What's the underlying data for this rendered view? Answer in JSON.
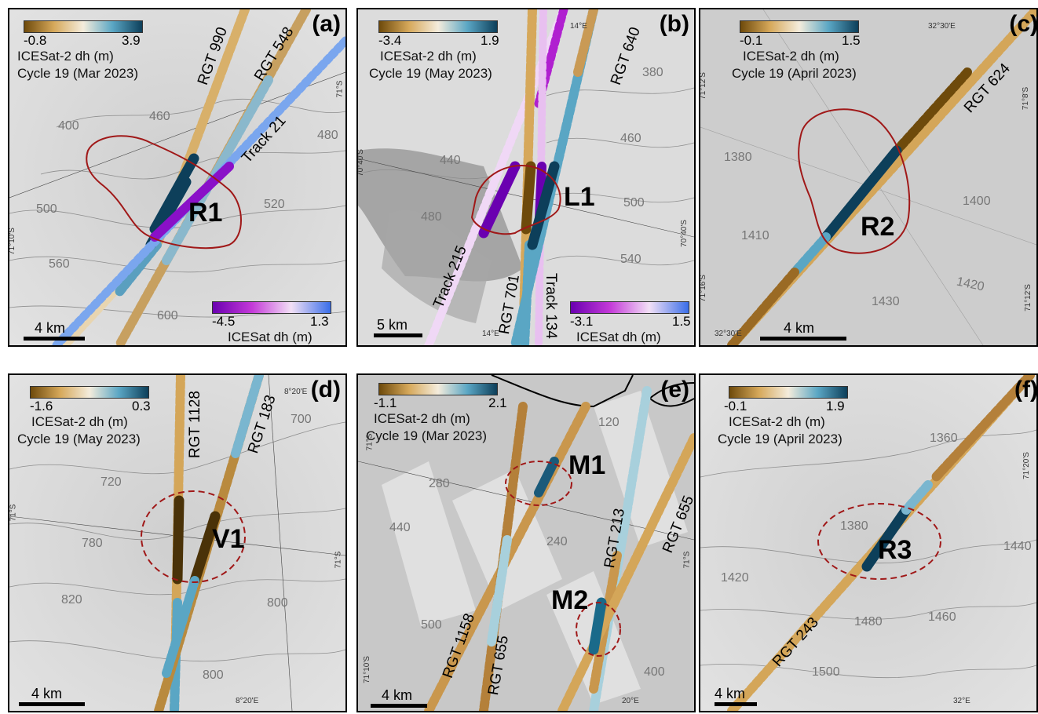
{
  "colors": {
    "dh_low": "#6e4a0b",
    "dh_mid": "#f4ecdc",
    "dh_high": "#0d3f5a",
    "icesat_low": "#6a00b0",
    "icesat_mid": "#f2e0f6",
    "icesat_high": "#3a6ee8",
    "outline": "#a01818",
    "background": "#d5d5d5"
  },
  "panels": [
    {
      "label": "(a)",
      "cbar1": {
        "min": "-0.8",
        "max": "3.9",
        "title": "ICESat-2 dh (m)",
        "cycle": "Cycle 19 (Mar 2023)"
      },
      "cbar2": {
        "min": "-4.5",
        "max": "1.3",
        "title": "ICESat dh (m)"
      },
      "tracks": [
        "RGT 990",
        "RGT 548",
        "Track 21"
      ],
      "feature": "R1",
      "contours": [
        "400",
        "460",
        "480",
        "500",
        "520",
        "560",
        "600"
      ],
      "coords": [
        "71°S",
        "71°10'S"
      ],
      "scale": "4 km"
    },
    {
      "label": "(b)",
      "cbar1": {
        "min": "-3.4",
        "max": "1.9",
        "title": "ICESat-2 dh (m)",
        "cycle": "Cycle 19 (May 2023)"
      },
      "cbar2": {
        "min": "-3.1",
        "max": "1.5",
        "title": "ICESat dh (m)"
      },
      "tracks": [
        "RGT 640",
        "Track 215",
        "RGT 701",
        "Track 134"
      ],
      "feature": "L1",
      "contours": [
        "380",
        "440",
        "460",
        "480",
        "500",
        "540"
      ],
      "coords": [
        "14°E",
        "70°40'S",
        "70°40'S",
        "14°E"
      ],
      "scale": "5 km"
    },
    {
      "label": "(c)",
      "cbar1": {
        "min": "-0.1",
        "max": "1.5",
        "title": "ICESat-2 dh (m)",
        "cycle": "Cycle 19 (April 2023)"
      },
      "tracks": [
        "RGT 624"
      ],
      "feature": "R2",
      "contours": [
        "1380",
        "1400",
        "1410",
        "1420",
        "1430"
      ],
      "coords": [
        "32°30'E",
        "71°12'S",
        "71°8'S",
        "71°16'S",
        "71°12'S",
        "32°30'E"
      ],
      "scale": "4 km"
    },
    {
      "label": "(d)",
      "cbar1": {
        "min": "-1.6",
        "max": "0.3",
        "title": "ICESat-2 dh (m)",
        "cycle": "Cycle 19 (May 2023)"
      },
      "tracks": [
        "RGT 1128",
        "RGT 183"
      ],
      "feature": "V1",
      "contours": [
        "700",
        "720",
        "780",
        "800",
        "820",
        "800"
      ],
      "coords": [
        "8°20'E",
        "71°S",
        "71°S",
        "8°20'E"
      ],
      "scale": "4 km"
    },
    {
      "label": "(e)",
      "cbar1": {
        "min": "-1.1",
        "max": "2.1",
        "title": "ICESat-2 dh (m)",
        "cycle": "Cycle 19 (Mar 2023)"
      },
      "tracks": [
        "RGT 213",
        "RGT 655",
        "RGT 1158",
        "RGT 655"
      ],
      "features": [
        "M1",
        "M2"
      ],
      "contours": [
        "120",
        "280",
        "440",
        "240",
        "500",
        "400"
      ],
      "coords": [
        "71°S",
        "71°S",
        "71°10'S",
        "20°E"
      ],
      "scale": "4 km"
    },
    {
      "label": "(f)",
      "cbar1": {
        "min": "-0.1",
        "max": "1.9",
        "title": "ICESat-2 dh (m)",
        "cycle": "Cycle 19 (April 2023)"
      },
      "tracks": [
        "RGT 243"
      ],
      "feature": "R3",
      "contours": [
        "1360",
        "1380",
        "1420",
        "1440",
        "1460",
        "1480",
        "1500"
      ],
      "coords": [
        "71°20'S",
        "32°E"
      ],
      "scale": "4 km"
    }
  ]
}
